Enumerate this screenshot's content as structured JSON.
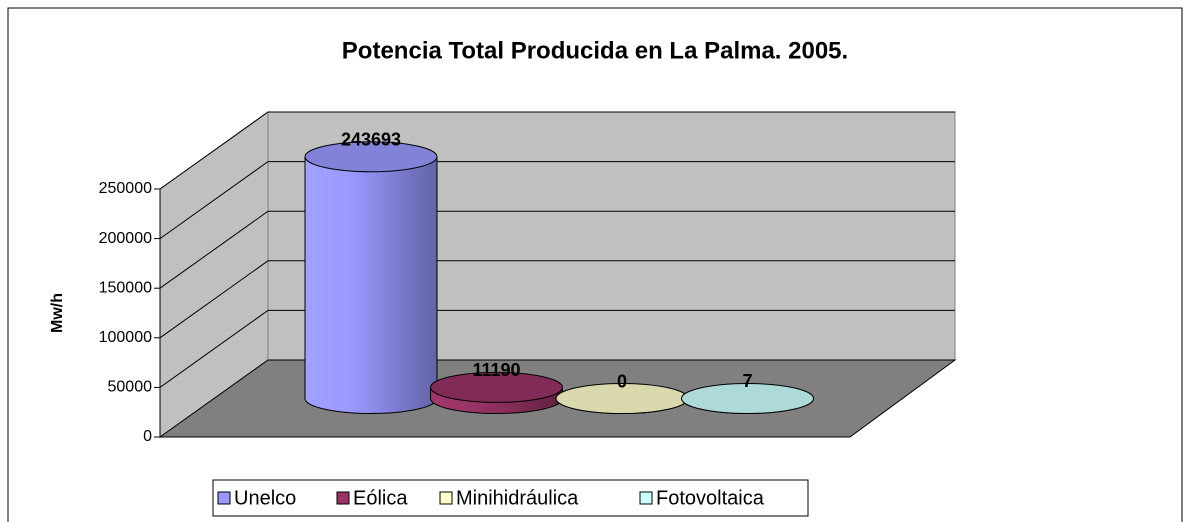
{
  "chart_data": {
    "type": "bar3d-cylinder",
    "title": "Potencia Total Producida en La Palma. 2005.",
    "y_label": "Mw/h",
    "series": [
      {
        "name": "Unelco",
        "color": "#9999ff",
        "values": [
          243693
        ]
      },
      {
        "name": "Eólica",
        "color": "#993366",
        "values": [
          11190
        ]
      },
      {
        "name": "Minihidráulica",
        "color": "#ffffcc",
        "values": [
          0
        ]
      },
      {
        "name": "Fotovoltaica",
        "color": "#ccffff",
        "values": [
          7
        ]
      }
    ],
    "ylim": [
      0,
      250000
    ],
    "yticks": [
      0,
      50000,
      100000,
      150000,
      200000,
      250000
    ],
    "grid": true,
    "legend": "bottom"
  }
}
